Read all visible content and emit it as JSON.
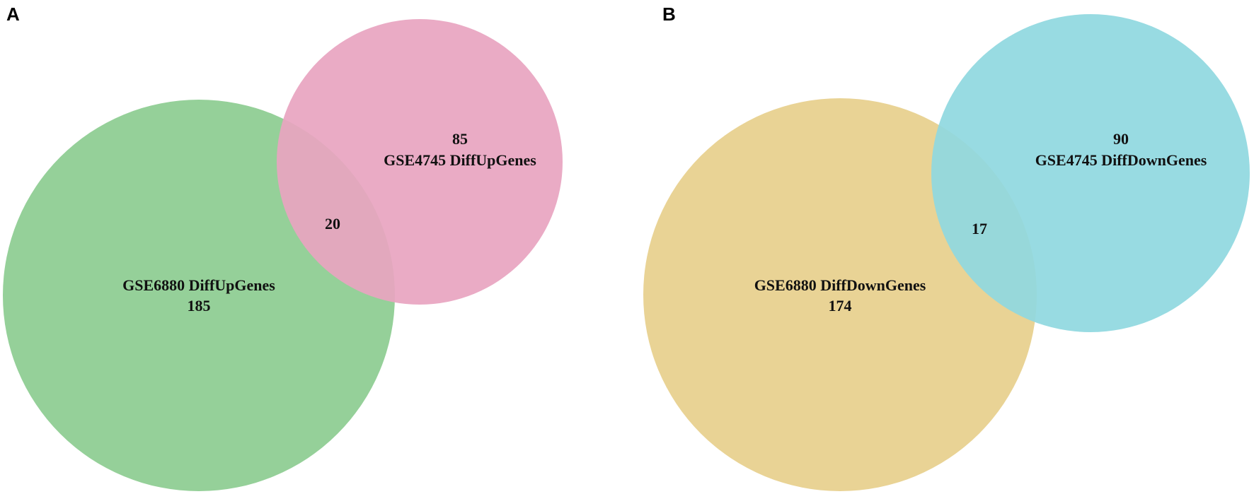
{
  "panels": [
    {
      "letter": "A",
      "sets": [
        {
          "label": "GSE6880 DiffUpGenes",
          "count": "185",
          "color": "#8fce93"
        },
        {
          "label": "GSE4745 DiffUpGenes",
          "count": "85",
          "color": "#e8a4c0"
        }
      ],
      "intersection": "20"
    },
    {
      "letter": "B",
      "sets": [
        {
          "label": "GSE6880 DiffDownGenes",
          "count": "174",
          "color": "#e8d18f"
        },
        {
          "label": "GSE4745 DiffDownGenes",
          "count": "90",
          "color": "#8fd8df"
        }
      ],
      "intersection": "17"
    }
  ]
}
